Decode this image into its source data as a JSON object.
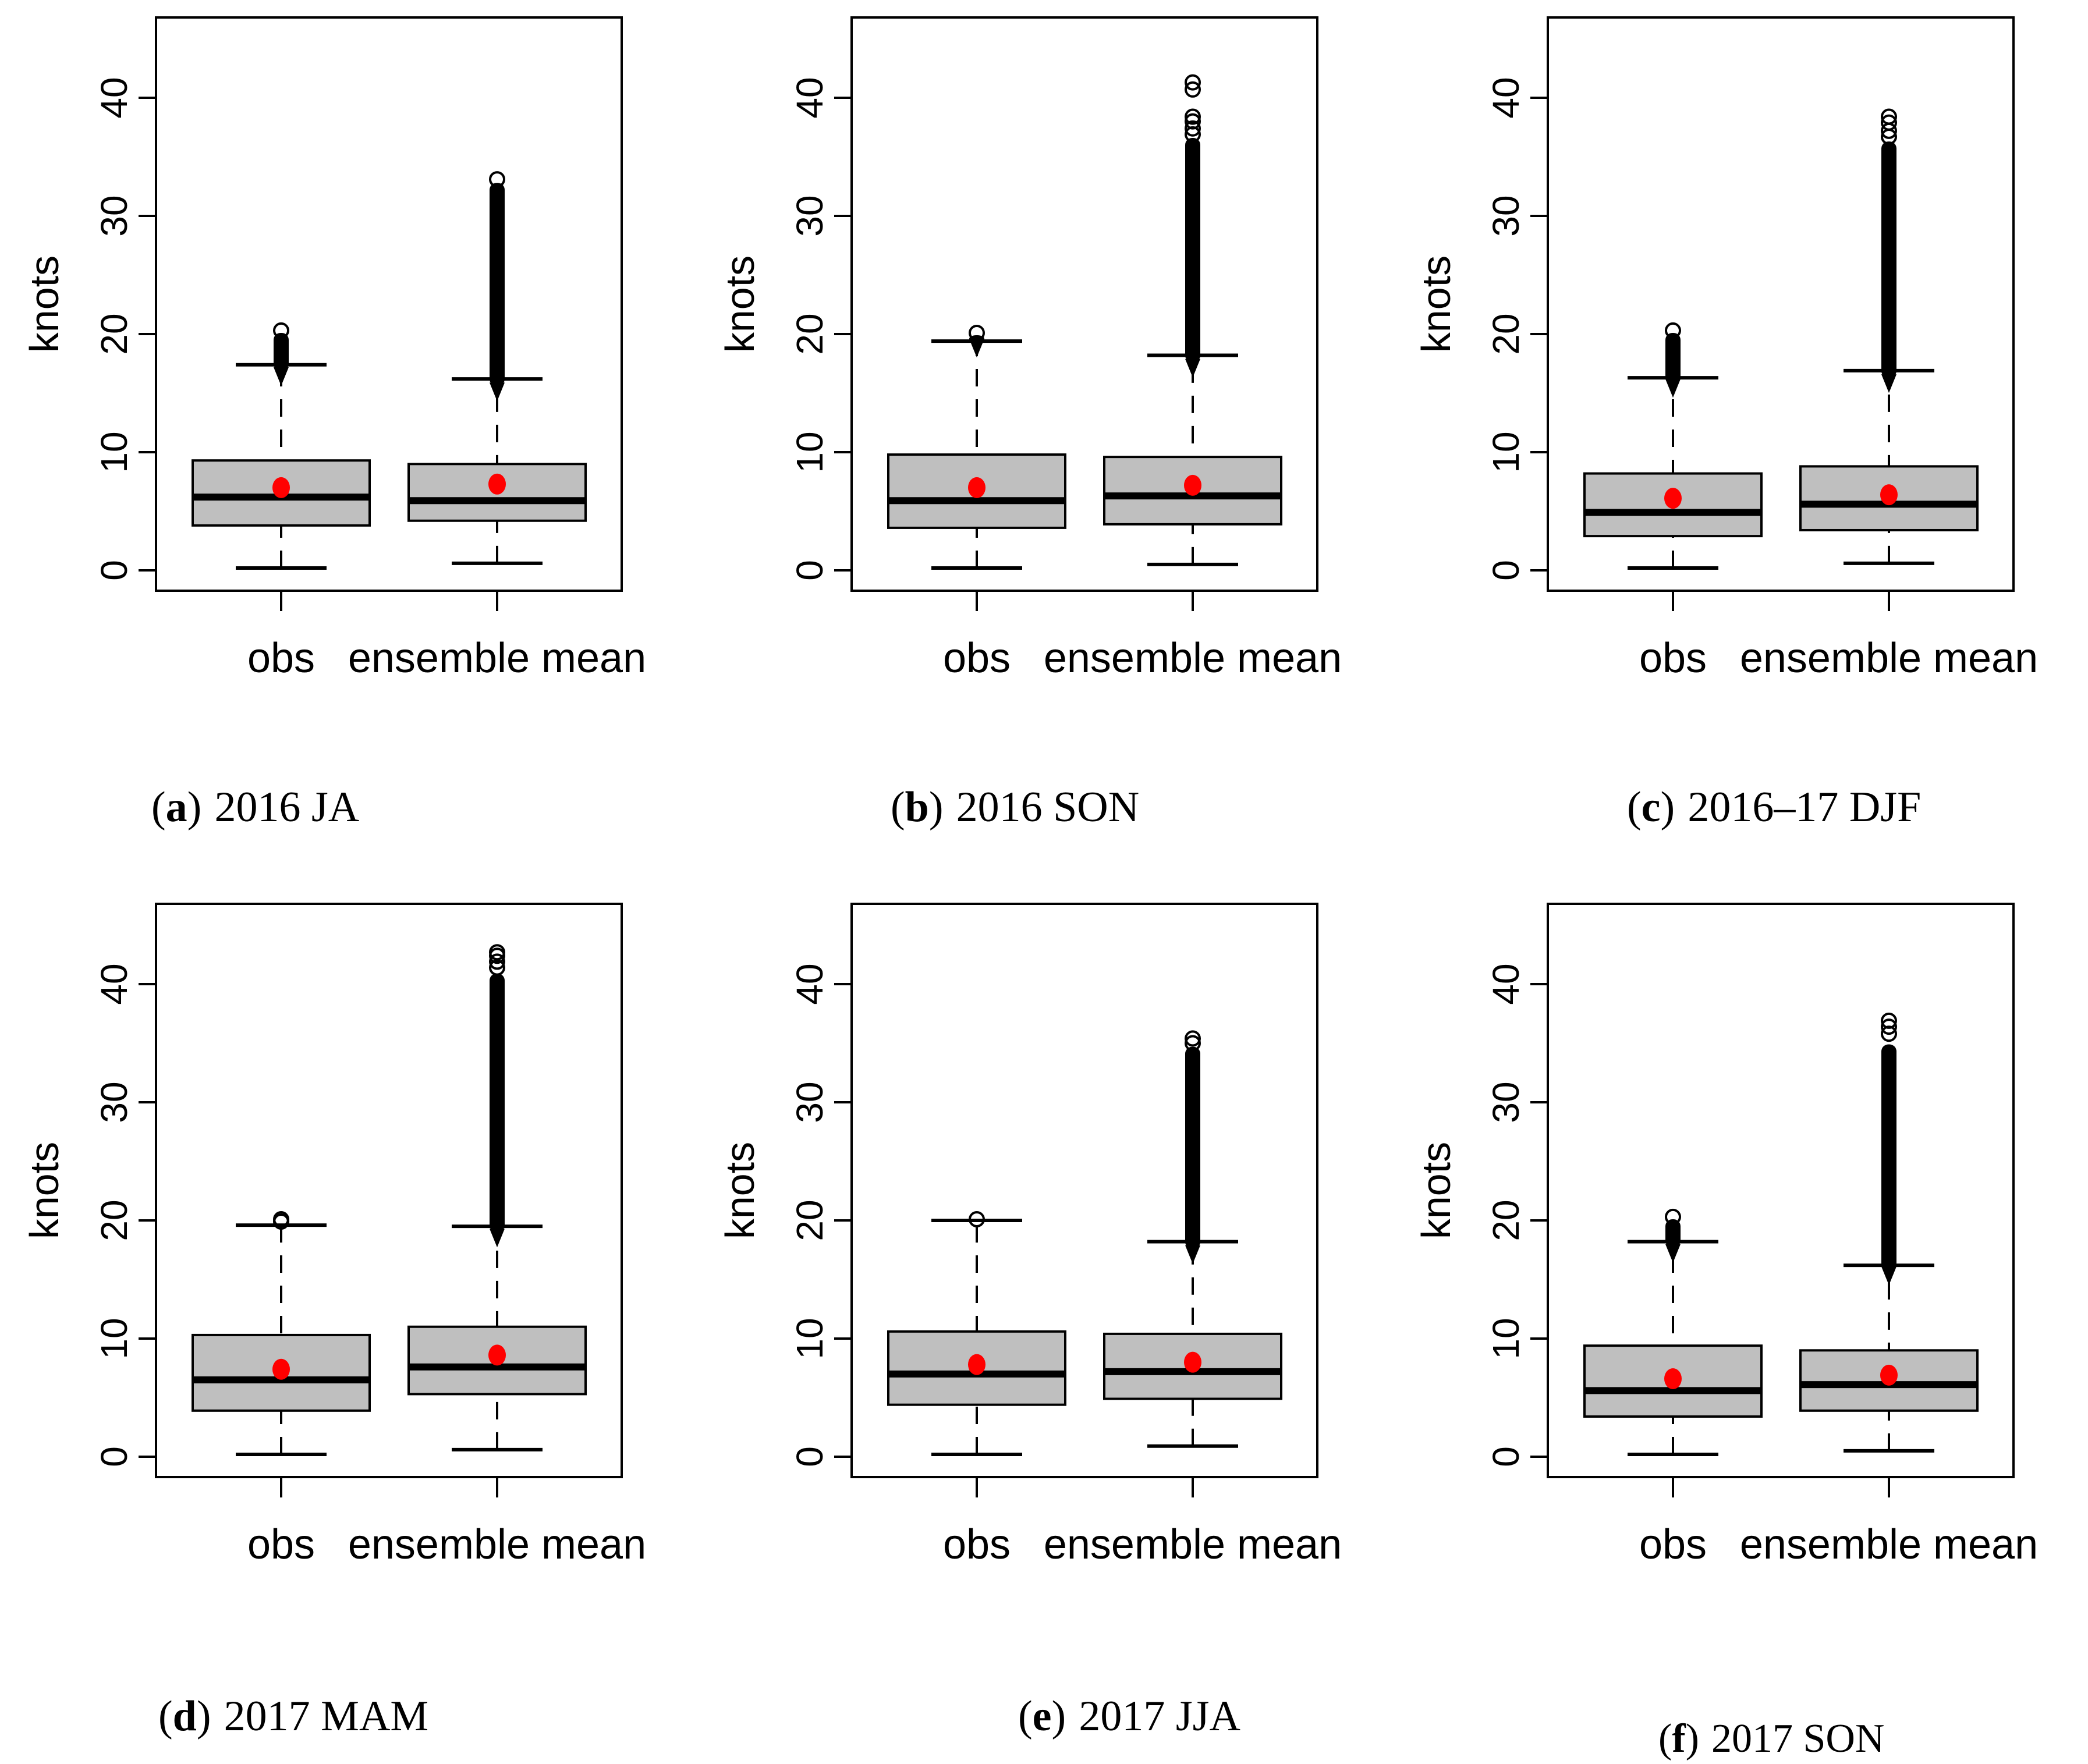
{
  "chart_data": {
    "type": "boxplot",
    "layout": "2 rows x 3 columns of panels",
    "unit": "knots",
    "categories": [
      "obs",
      "ensemble mean"
    ],
    "y_axis": {
      "label": "knots",
      "ticks": [
        0,
        10,
        20,
        30,
        40
      ],
      "ylim": [
        -1.7,
        46.8
      ],
      "grid": false
    },
    "colors": {
      "background": "#ffffff",
      "line": "#000000",
      "box_fill": "#bfbfbf",
      "mean_dot": "#ff0000",
      "text": "#000000"
    },
    "panels": [
      {
        "id": "a",
        "caption": {
          "paren_open": "(",
          "letter": "a",
          "paren_close": ")",
          "label": "2016 JA"
        },
        "boxes": [
          {
            "category": "obs",
            "whisker_low": 0.2,
            "q1": 3.8,
            "median": 6.2,
            "q3": 9.3,
            "whisker_high": 17.4,
            "mean": 7.0,
            "outlier_band": [
              16.9,
              20.1
            ],
            "outlier_circles": [
              20.3
            ]
          },
          {
            "category": "ensemble mean",
            "whisker_low": 0.6,
            "q1": 4.2,
            "median": 5.9,
            "q3": 9.0,
            "whisker_high": 16.2,
            "mean": 7.3,
            "outlier_band": [
              15.6,
              32.8
            ],
            "outlier_circles": [
              33.1
            ]
          }
        ]
      },
      {
        "id": "b",
        "caption": {
          "paren_open": "(",
          "letter": "b",
          "paren_close": ")",
          "label": "2016 SON"
        },
        "boxes": [
          {
            "category": "obs",
            "whisker_low": 0.2,
            "q1": 3.6,
            "median": 5.9,
            "q3": 9.8,
            "whisker_high": 19.4,
            "mean": 7.0,
            "outlier_band": [
              19.3,
              19.9
            ],
            "outlier_circles": [
              20.1
            ]
          },
          {
            "category": "ensemble mean",
            "whisker_low": 0.5,
            "q1": 3.9,
            "median": 6.3,
            "q3": 9.6,
            "whisker_high": 18.2,
            "mean": 7.2,
            "outlier_band": [
              17.6,
              36.6
            ],
            "outlier_circles": [
              36.9,
              37.4,
              38.0,
              38.4,
              40.7,
              41.3
            ]
          }
        ]
      },
      {
        "id": "c",
        "caption": {
          "paren_open": "(",
          "letter": "c",
          "paren_close": ")",
          "label": "2016–17 DJF"
        },
        "boxes": [
          {
            "category": "obs",
            "whisker_low": 0.2,
            "q1": 2.9,
            "median": 4.9,
            "q3": 8.2,
            "whisker_high": 16.3,
            "mean": 6.1,
            "outlier_band": [
              15.9,
              20.1
            ],
            "outlier_circles": [
              20.3
            ]
          },
          {
            "category": "ensemble mean",
            "whisker_low": 0.6,
            "q1": 3.4,
            "median": 5.6,
            "q3": 8.8,
            "whisker_high": 16.9,
            "mean": 6.4,
            "outlier_band": [
              16.3,
              36.3
            ],
            "outlier_circles": [
              36.7,
              37.2,
              37.9,
              38.4
            ]
          }
        ]
      },
      {
        "id": "d",
        "caption": {
          "paren_open": "(",
          "letter": "d",
          "paren_close": ")",
          "label": "2017 MAM"
        },
        "boxes": [
          {
            "category": "obs",
            "whisker_low": 0.2,
            "q1": 3.9,
            "median": 6.5,
            "q3": 10.3,
            "whisker_high": 19.6,
            "mean": 7.4,
            "outlier_circles": [
              19.9,
              20.1
            ]
          },
          {
            "category": "ensemble mean",
            "whisker_low": 0.6,
            "q1": 5.3,
            "median": 7.6,
            "q3": 11.0,
            "whisker_high": 19.5,
            "mean": 8.6,
            "outlier_band": [
              19.0,
              40.9
            ],
            "outlier_circles": [
              41.4,
              41.9,
              42.4,
              42.7
            ]
          }
        ]
      },
      {
        "id": "e",
        "caption": {
          "paren_open": "(",
          "letter": "e",
          "paren_close": ")",
          "label": "2017 JJA"
        },
        "boxes": [
          {
            "category": "obs",
            "whisker_low": 0.2,
            "q1": 4.4,
            "median": 7.0,
            "q3": 10.6,
            "whisker_high": 20.0,
            "mean": 7.8,
            "outlier_circles": [
              20.1
            ]
          },
          {
            "category": "ensemble mean",
            "whisker_low": 0.9,
            "q1": 4.9,
            "median": 7.2,
            "q3": 10.4,
            "whisker_high": 18.2,
            "mean": 8.0,
            "outlier_band": [
              17.6,
              34.7
            ],
            "outlier_circles": [
              35.0,
              35.4
            ]
          }
        ]
      },
      {
        "id": "f",
        "caption": {
          "paren_open": "(",
          "letter": "f",
          "paren_close": ")",
          "label": "2017 SON"
        },
        "boxes": [
          {
            "category": "obs",
            "whisker_low": 0.2,
            "q1": 3.4,
            "median": 5.6,
            "q3": 9.4,
            "whisker_high": 18.2,
            "mean": 6.6,
            "outlier_band": [
              17.7,
              20.1
            ],
            "outlier_circles": [
              20.3
            ]
          },
          {
            "category": "ensemble mean",
            "whisker_low": 0.5,
            "q1": 3.9,
            "median": 6.1,
            "q3": 9.0,
            "whisker_high": 16.2,
            "mean": 6.9,
            "outlier_band": [
              15.8,
              34.9
            ],
            "outlier_circles": [
              35.8,
              36.4,
              36.9
            ]
          }
        ]
      }
    ]
  }
}
